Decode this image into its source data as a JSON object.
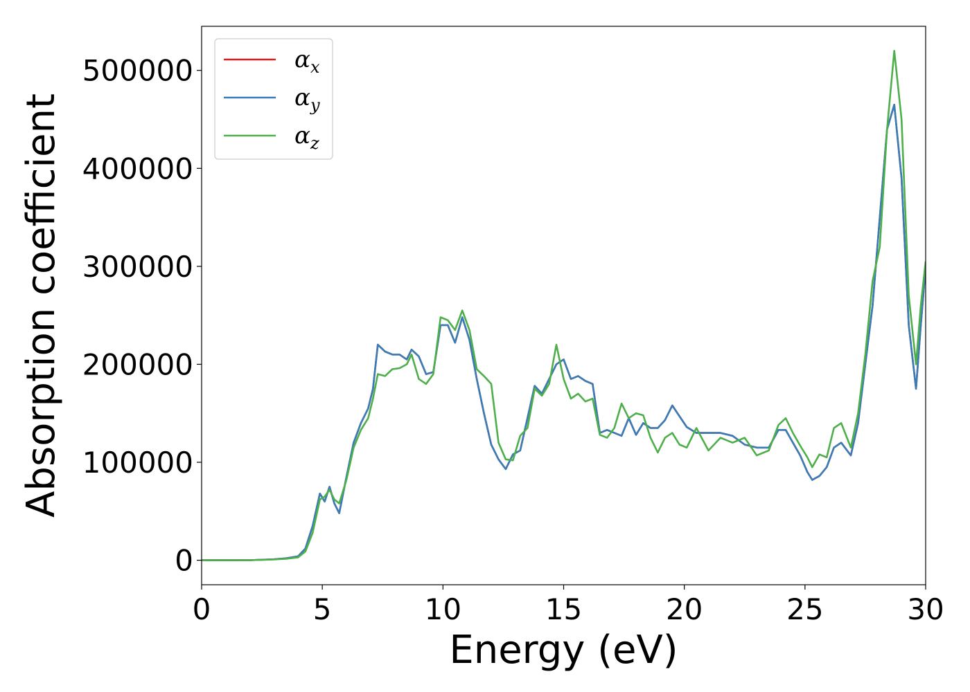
{
  "chart_data": {
    "type": "line",
    "xlabel": "Energy (eV)",
    "ylabel": "Absorption coefficient",
    "xlim": [
      0,
      30
    ],
    "ylim": [
      -25000,
      545000
    ],
    "xticks": [
      0,
      5,
      10,
      15,
      20,
      25,
      30
    ],
    "yticks": [
      0,
      100000,
      200000,
      300000,
      400000,
      500000
    ],
    "grid": false,
    "legend_position": "top-left",
    "x": [
      0,
      1,
      2,
      3,
      3.5,
      4,
      4.3,
      4.6,
      4.9,
      5.1,
      5.3,
      5.5,
      5.7,
      6.0,
      6.3,
      6.6,
      6.9,
      7.1,
      7.3,
      7.6,
      7.9,
      8.2,
      8.5,
      8.7,
      9.0,
      9.3,
      9.6,
      9.9,
      10.2,
      10.5,
      10.8,
      11.1,
      11.4,
      11.7,
      12.0,
      12.3,
      12.6,
      12.9,
      13.2,
      13.5,
      13.8,
      14.1,
      14.4,
      14.7,
      15.0,
      15.3,
      15.6,
      15.9,
      16.2,
      16.5,
      16.8,
      17.1,
      17.4,
      17.7,
      18.0,
      18.3,
      18.6,
      18.9,
      19.2,
      19.5,
      19.8,
      20.1,
      20.5,
      21.0,
      21.5,
      22.0,
      22.5,
      23.0,
      23.5,
      23.9,
      24.2,
      24.5,
      24.8,
      25.1,
      25.3,
      25.6,
      25.9,
      26.2,
      26.5,
      26.9,
      27.2,
      27.5,
      27.8,
      28.1,
      28.4,
      28.7,
      29.0,
      29.3,
      29.6,
      29.8,
      30.0
    ],
    "series": [
      {
        "name": "α_x",
        "color": "#e41a1c",
        "values": [
          0,
          0,
          100,
          1000,
          2000,
          4000,
          12000,
          35000,
          68000,
          60000,
          75000,
          58000,
          48000,
          85000,
          120000,
          140000,
          155000,
          175000,
          220000,
          213000,
          210000,
          210000,
          205000,
          215000,
          208000,
          190000,
          192000,
          240000,
          240000,
          222000,
          248000,
          225000,
          185000,
          150000,
          118000,
          103000,
          93000,
          108000,
          112000,
          145000,
          178000,
          170000,
          185000,
          200000,
          205000,
          185000,
          188000,
          183000,
          180000,
          130000,
          133000,
          130000,
          127000,
          145000,
          128000,
          140000,
          135000,
          135000,
          143000,
          158000,
          147000,
          136000,
          130000,
          130000,
          130000,
          127000,
          118000,
          115000,
          115000,
          133000,
          133000,
          120000,
          107000,
          90000,
          82000,
          86000,
          95000,
          115000,
          120000,
          107000,
          140000,
          200000,
          260000,
          350000,
          440000,
          465000,
          390000,
          240000,
          175000,
          240000,
          300000
        ]
      },
      {
        "name": "α_y",
        "color": "#377eb8",
        "values": [
          0,
          0,
          100,
          1000,
          2000,
          4000,
          12000,
          35000,
          68000,
          60000,
          75000,
          58000,
          48000,
          85000,
          120000,
          140000,
          155000,
          175000,
          220000,
          213000,
          210000,
          210000,
          205000,
          215000,
          208000,
          190000,
          192000,
          240000,
          240000,
          222000,
          248000,
          225000,
          185000,
          150000,
          118000,
          103000,
          93000,
          108000,
          112000,
          145000,
          178000,
          170000,
          185000,
          200000,
          205000,
          185000,
          188000,
          183000,
          180000,
          130000,
          133000,
          130000,
          127000,
          145000,
          128000,
          140000,
          135000,
          135000,
          143000,
          158000,
          147000,
          136000,
          130000,
          130000,
          130000,
          127000,
          118000,
          115000,
          115000,
          133000,
          133000,
          120000,
          107000,
          90000,
          82000,
          86000,
          95000,
          115000,
          120000,
          107000,
          140000,
          200000,
          260000,
          350000,
          440000,
          465000,
          390000,
          240000,
          175000,
          240000,
          300000
        ]
      },
      {
        "name": "α_z",
        "color": "#4daf4a",
        "values": [
          0,
          0,
          100,
          800,
          1500,
          3000,
          9000,
          28000,
          62000,
          65000,
          72000,
          62000,
          58000,
          82000,
          115000,
          133000,
          145000,
          165000,
          190000,
          188000,
          195000,
          196000,
          200000,
          210000,
          185000,
          180000,
          190000,
          248000,
          245000,
          235000,
          255000,
          235000,
          195000,
          188000,
          180000,
          120000,
          103000,
          102000,
          127000,
          135000,
          175000,
          168000,
          180000,
          220000,
          185000,
          165000,
          170000,
          162000,
          165000,
          128000,
          125000,
          135000,
          160000,
          145000,
          150000,
          148000,
          125000,
          110000,
          125000,
          130000,
          118000,
          115000,
          135000,
          112000,
          125000,
          120000,
          125000,
          107000,
          112000,
          138000,
          145000,
          130000,
          117000,
          105000,
          95000,
          108000,
          105000,
          135000,
          140000,
          115000,
          150000,
          210000,
          285000,
          320000,
          440000,
          520000,
          450000,
          270000,
          200000,
          260000,
          305000
        ]
      }
    ]
  }
}
